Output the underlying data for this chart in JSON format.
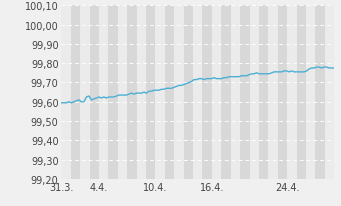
{
  "title": "",
  "ylabel": "",
  "xlabel": "",
  "xlim_start": 0,
  "xlim_end": 29,
  "ylim": [
    99.2,
    100.1
  ],
  "yticks": [
    99.2,
    99.3,
    99.4,
    99.5,
    99.6,
    99.7,
    99.8,
    99.9,
    100.0,
    100.1
  ],
  "xtick_positions": [
    0,
    4,
    10,
    16,
    24
  ],
  "xtick_labels": [
    "31.3.",
    "4.4.",
    "10.4.",
    "16.4.",
    "24.4."
  ],
  "line_color": "#4bafd4",
  "line_width": 1.0,
  "bg_color": "#f0f0f0",
  "plot_bg_light": "#ebebeb",
  "plot_bg_dark": "#d8d8d8",
  "grid_color": "#ffffff",
  "y_values": [
    99.595,
    99.595,
    99.595,
    99.6,
    99.595,
    99.6,
    99.605,
    99.61,
    99.6,
    99.6,
    99.625,
    99.63,
    99.61,
    99.615,
    99.62,
    99.625,
    99.62,
    99.625,
    99.62,
    99.625,
    99.625,
    99.625,
    99.63,
    99.635,
    99.635,
    99.635,
    99.635,
    99.64,
    99.645,
    99.64,
    99.645,
    99.645,
    99.645,
    99.65,
    99.645,
    99.655,
    99.655,
    99.66,
    99.66,
    99.66,
    99.665,
    99.665,
    99.67,
    99.67,
    99.67,
    99.675,
    99.68,
    99.685,
    99.685,
    99.69,
    99.695,
    99.7,
    99.705,
    99.715,
    99.715,
    99.72,
    99.72,
    99.715,
    99.72,
    99.72,
    99.72,
    99.725,
    99.72,
    99.72,
    99.72,
    99.725,
    99.725,
    99.73,
    99.73,
    99.73,
    99.73,
    99.73,
    99.735,
    99.735,
    99.735,
    99.74,
    99.745,
    99.745,
    99.75,
    99.745,
    99.745,
    99.745,
    99.745,
    99.745,
    99.75,
    99.755,
    99.755,
    99.755,
    99.755,
    99.76,
    99.76,
    99.755,
    99.76,
    99.755,
    99.755,
    99.755,
    99.755,
    99.755,
    99.76,
    99.77,
    99.775,
    99.775,
    99.78,
    99.78,
    99.775,
    99.78,
    99.78,
    99.775,
    99.775,
    99.775
  ],
  "font_size_ticks": 7.0,
  "tick_color": "#444444"
}
